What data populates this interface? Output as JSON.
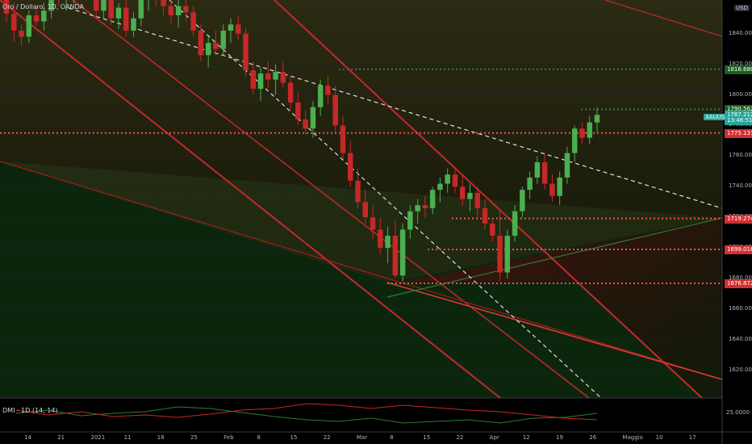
{
  "header": {
    "title": "Oro / Dollaro, 1D, OANDA",
    "currency": "USD"
  },
  "indicator": {
    "label": "DMI · 1D (14, 14)",
    "value": "25.0000"
  },
  "price_axis": {
    "ticks": [
      "1840.000",
      "1820.000",
      "1800.000",
      "1780.000",
      "1760.000",
      "1740.000",
      "1720.000",
      "1700.000",
      "1680.000",
      "1660.000",
      "1640.000",
      "1620.000"
    ]
  },
  "time_axis": {
    "ticks": [
      "14",
      "21",
      "2021",
      "11",
      "18",
      "25",
      "Feb",
      "8",
      "15",
      "22",
      "Mar",
      "8",
      "15",
      "22",
      "Apr",
      "12",
      "19",
      "26",
      "Maggio",
      "10",
      "17"
    ]
  },
  "price_tags": [
    {
      "label": "1816.680",
      "color": "#1b5e20"
    },
    {
      "label": "1790.562",
      "color": "#1b5e20"
    },
    {
      "label": "1787.212",
      "color": "#26a69a"
    },
    {
      "label": "13:46:51",
      "color": "#26a69a"
    },
    {
      "label": "1775.137",
      "color": "#d32f2f"
    },
    {
      "label": "1719.274",
      "color": "#d32f2f"
    },
    {
      "label": "1699.016",
      "color": "#d32f2f"
    },
    {
      "label": "1676.872",
      "color": "#d32f2f"
    }
  ],
  "symbol_tag": "XAUUSD",
  "chart_data": {
    "type": "candlestick",
    "ylim": [
      1602,
      1862
    ],
    "colors": {
      "up": "#4caf50",
      "down": "#c62828",
      "level": "#ef5350",
      "green_level": "#2e7d32"
    },
    "candles": [
      [
        1873,
        1879,
        1848,
        1853
      ],
      [
        1853,
        1860,
        1835,
        1842
      ],
      [
        1842,
        1846,
        1832,
        1838
      ],
      [
        1838,
        1855,
        1834,
        1852
      ],
      [
        1852,
        1858,
        1845,
        1848
      ],
      [
        1848,
        1860,
        1842,
        1855
      ],
      [
        1855,
        1868,
        1850,
        1865
      ],
      [
        1865,
        1872,
        1858,
        1862
      ],
      [
        1862,
        1870,
        1855,
        1868
      ],
      [
        1868,
        1878,
        1860,
        1872
      ],
      [
        1872,
        1880,
        1862,
        1875
      ],
      [
        1875,
        1885,
        1866,
        1870
      ],
      [
        1870,
        1876,
        1850,
        1855
      ],
      [
        1855,
        1866,
        1850,
        1862
      ],
      [
        1862,
        1868,
        1846,
        1850
      ],
      [
        1850,
        1860,
        1843,
        1857
      ],
      [
        1857,
        1862,
        1838,
        1842
      ],
      [
        1842,
        1854,
        1838,
        1850
      ],
      [
        1850,
        1866,
        1845,
        1862
      ],
      [
        1862,
        1872,
        1855,
        1868
      ],
      [
        1868,
        1878,
        1858,
        1862
      ],
      [
        1862,
        1870,
        1852,
        1858
      ],
      [
        1858,
        1864,
        1847,
        1852
      ],
      [
        1852,
        1862,
        1844,
        1858
      ],
      [
        1858,
        1864,
        1848,
        1854
      ],
      [
        1854,
        1858,
        1838,
        1842
      ],
      [
        1842,
        1846,
        1822,
        1826
      ],
      [
        1826,
        1838,
        1818,
        1834
      ],
      [
        1834,
        1842,
        1826,
        1830
      ],
      [
        1830,
        1846,
        1826,
        1842
      ],
      [
        1842,
        1850,
        1834,
        1846
      ],
      [
        1846,
        1852,
        1836,
        1840
      ],
      [
        1840,
        1844,
        1812,
        1816
      ],
      [
        1816,
        1822,
        1800,
        1804
      ],
      [
        1804,
        1818,
        1796,
        1814
      ],
      [
        1814,
        1822,
        1804,
        1810
      ],
      [
        1810,
        1820,
        1800,
        1815
      ],
      [
        1815,
        1822,
        1805,
        1808
      ],
      [
        1808,
        1812,
        1790,
        1795
      ],
      [
        1795,
        1802,
        1780,
        1784
      ],
      [
        1784,
        1790,
        1774,
        1778
      ],
      [
        1778,
        1796,
        1772,
        1792
      ],
      [
        1792,
        1810,
        1786,
        1806
      ],
      [
        1806,
        1812,
        1794,
        1800
      ],
      [
        1800,
        1806,
        1776,
        1780
      ],
      [
        1780,
        1786,
        1758,
        1762
      ],
      [
        1762,
        1770,
        1740,
        1744
      ],
      [
        1744,
        1752,
        1726,
        1730
      ],
      [
        1730,
        1738,
        1716,
        1720
      ],
      [
        1720,
        1728,
        1706,
        1712
      ],
      [
        1712,
        1720,
        1696,
        1700
      ],
      [
        1700,
        1714,
        1690,
        1708
      ],
      [
        1708,
        1718,
        1680,
        1682
      ],
      [
        1682,
        1716,
        1678,
        1712
      ],
      [
        1712,
        1728,
        1706,
        1724
      ],
      [
        1724,
        1732,
        1716,
        1728
      ],
      [
        1728,
        1734,
        1720,
        1726
      ],
      [
        1726,
        1740,
        1722,
        1738
      ],
      [
        1738,
        1746,
        1730,
        1742
      ],
      [
        1742,
        1752,
        1736,
        1748
      ],
      [
        1748,
        1752,
        1736,
        1740
      ],
      [
        1740,
        1748,
        1728,
        1732
      ],
      [
        1732,
        1742,
        1724,
        1736
      ],
      [
        1736,
        1740,
        1720,
        1726
      ],
      [
        1726,
        1732,
        1712,
        1716
      ],
      [
        1716,
        1720,
        1704,
        1708
      ],
      [
        1708,
        1724,
        1678,
        1684
      ],
      [
        1684,
        1712,
        1680,
        1708
      ],
      [
        1708,
        1728,
        1704,
        1724
      ],
      [
        1724,
        1740,
        1720,
        1738
      ],
      [
        1738,
        1750,
        1732,
        1746
      ],
      [
        1746,
        1760,
        1742,
        1756
      ],
      [
        1756,
        1762,
        1738,
        1742
      ],
      [
        1742,
        1748,
        1730,
        1734
      ],
      [
        1734,
        1750,
        1728,
        1746
      ],
      [
        1746,
        1766,
        1742,
        1762
      ],
      [
        1762,
        1780,
        1756,
        1778
      ],
      [
        1778,
        1782,
        1768,
        1772
      ],
      [
        1772,
        1786,
        1768,
        1782
      ],
      [
        1782,
        1792,
        1776,
        1787
      ]
    ],
    "levels": [
      1816.68,
      1790.562,
      1775.137,
      1719.274,
      1699.016,
      1676.872
    ]
  }
}
